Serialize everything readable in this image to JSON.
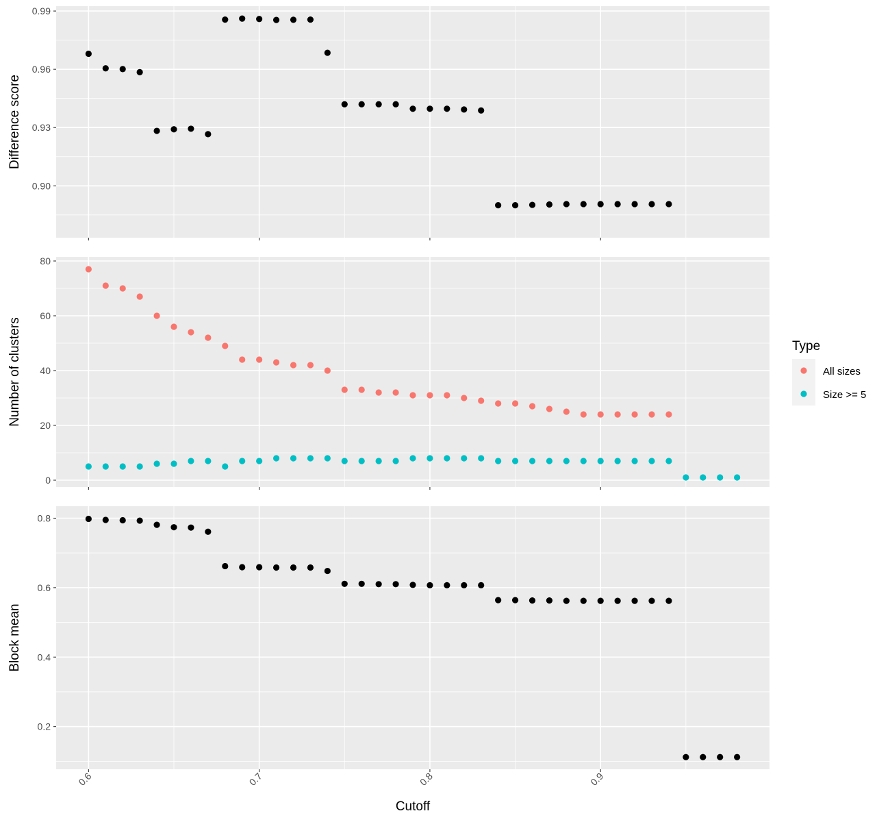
{
  "chart_data": {
    "type": "scatter",
    "facets": "stacked",
    "xlabel": "Cutoff",
    "x_ticks": [
      0.6,
      0.7,
      0.8,
      0.9
    ],
    "x_tick_labels": [
      "0.6",
      "0.7",
      "0.8",
      "0.9"
    ],
    "xlim": [
      0.581,
      0.999
    ],
    "panels": [
      {
        "ylabel": "Difference score",
        "ylim": [
          0.8733,
          0.9925
        ],
        "y_ticks": [
          0.9,
          0.93,
          0.96,
          0.99
        ],
        "y_tick_labels": [
          "0.90",
          "0.93",
          "0.96",
          "0.99"
        ],
        "series": [
          {
            "color": "#000000",
            "x": [
              0.6,
              0.61,
              0.62,
              0.63,
              0.64,
              0.65,
              0.66,
              0.67,
              0.68,
              0.69,
              0.7,
              0.71,
              0.72,
              0.73,
              0.74,
              0.75,
              0.76,
              0.77,
              0.78,
              0.79,
              0.8,
              0.81,
              0.82,
              0.83,
              0.84,
              0.85,
              0.86,
              0.87,
              0.88,
              0.89,
              0.9,
              0.91,
              0.92,
              0.93,
              0.94
            ],
            "y": [
              0.968,
              0.9605,
              0.9601,
              0.9585,
              0.9283,
              0.9291,
              0.9294,
              0.9266,
              0.9856,
              0.9861,
              0.9859,
              0.9854,
              0.9855,
              0.9856,
              0.9685,
              0.942,
              0.942,
              0.942,
              0.942,
              0.9397,
              0.9397,
              0.9397,
              0.9393,
              0.9388,
              0.89,
              0.89,
              0.8902,
              0.8904,
              0.8906,
              0.8906,
              0.8906,
              0.8906,
              0.8906,
              0.8906,
              0.8906
            ]
          }
        ]
      },
      {
        "ylabel": "Number of clusters",
        "ylim": [
          -2.5,
          81.5
        ],
        "y_ticks": [
          0,
          20,
          40,
          60,
          80
        ],
        "y_tick_labels": [
          "0",
          "20",
          "40",
          "60",
          "80"
        ],
        "series": [
          {
            "name": "All sizes",
            "color": "#f8766d",
            "x": [
              0.6,
              0.61,
              0.62,
              0.63,
              0.64,
              0.65,
              0.66,
              0.67,
              0.68,
              0.69,
              0.7,
              0.71,
              0.72,
              0.73,
              0.74,
              0.75,
              0.76,
              0.77,
              0.78,
              0.79,
              0.8,
              0.81,
              0.82,
              0.83,
              0.84,
              0.85,
              0.86,
              0.87,
              0.88,
              0.89,
              0.9,
              0.91,
              0.92,
              0.93,
              0.94
            ],
            "y": [
              77,
              71,
              70,
              67,
              60,
              56,
              54,
              52,
              49,
              44,
              44,
              43,
              42,
              42,
              40,
              33,
              33,
              32,
              32,
              31,
              31,
              31,
              30,
              29,
              28,
              28,
              27,
              26,
              25,
              24,
              24,
              24,
              24,
              24,
              24
            ]
          },
          {
            "name": "Size >= 5",
            "color": "#00bfc4",
            "x": [
              0.6,
              0.61,
              0.62,
              0.63,
              0.64,
              0.65,
              0.66,
              0.67,
              0.68,
              0.69,
              0.7,
              0.71,
              0.72,
              0.73,
              0.74,
              0.75,
              0.76,
              0.77,
              0.78,
              0.79,
              0.8,
              0.81,
              0.82,
              0.83,
              0.84,
              0.85,
              0.86,
              0.87,
              0.88,
              0.89,
              0.9,
              0.91,
              0.92,
              0.93,
              0.94,
              0.95,
              0.96,
              0.97,
              0.98
            ],
            "y": [
              5,
              5,
              5,
              5,
              6,
              6,
              7,
              7,
              5,
              7,
              7,
              8,
              8,
              8,
              8,
              7,
              7,
              7,
              7,
              8,
              8,
              8,
              8,
              8,
              7,
              7,
              7,
              7,
              7,
              7,
              7,
              7,
              7,
              7,
              7,
              1,
              1,
              1,
              1
            ]
          }
        ]
      },
      {
        "ylabel": "Block mean",
        "ylim": [
          0.077,
          0.8345
        ],
        "y_ticks": [
          0.2,
          0.4,
          0.6,
          0.8
        ],
        "y_tick_labels": [
          "0.2",
          "0.4",
          "0.6",
          "0.8"
        ],
        "series": [
          {
            "color": "#000000",
            "x": [
              0.6,
              0.61,
              0.62,
              0.63,
              0.64,
              0.65,
              0.66,
              0.67,
              0.68,
              0.69,
              0.7,
              0.71,
              0.72,
              0.73,
              0.74,
              0.75,
              0.76,
              0.77,
              0.78,
              0.79,
              0.8,
              0.81,
              0.82,
              0.83,
              0.84,
              0.85,
              0.86,
              0.87,
              0.88,
              0.89,
              0.9,
              0.91,
              0.92,
              0.93,
              0.94,
              0.95,
              0.96,
              0.97,
              0.98
            ],
            "y": [
              0.798,
              0.795,
              0.794,
              0.793,
              0.781,
              0.774,
              0.773,
              0.761,
              0.662,
              0.659,
              0.659,
              0.658,
              0.658,
              0.658,
              0.648,
              0.611,
              0.611,
              0.61,
              0.61,
              0.608,
              0.607,
              0.607,
              0.607,
              0.607,
              0.564,
              0.564,
              0.563,
              0.563,
              0.562,
              0.562,
              0.562,
              0.562,
              0.562,
              0.562,
              0.562,
              0.112,
              0.112,
              0.112,
              0.112
            ]
          }
        ]
      }
    ],
    "legend": {
      "title": "Type",
      "placement": "right",
      "entries": [
        {
          "label": "All sizes",
          "color": "#f8766d"
        },
        {
          "label": "Size >= 5",
          "color": "#00bfc4"
        }
      ]
    }
  }
}
